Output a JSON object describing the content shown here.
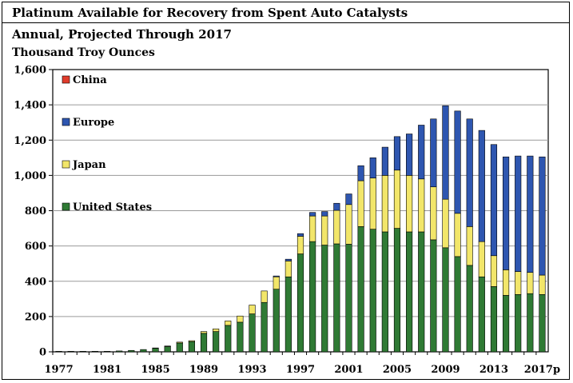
{
  "header": {
    "title": "Platinum Available for Recovery from Spent Auto Catalysts",
    "subtitle": "Annual, Projected Through 2017",
    "unit": "Thousand Troy Ounces"
  },
  "colors": {
    "china": "#e03c2c",
    "europe": "#2e56b0",
    "japan": "#f2e66a",
    "us": "#2f7a34",
    "grid": "#9a9a9a"
  },
  "chart_data": {
    "type": "bar",
    "stacked": true,
    "title": "Platinum Available for Recovery from Spent Auto Catalysts",
    "subtitle": "Annual, Projected Through 2017",
    "ylabel": "Thousand Troy Ounces",
    "ylim": [
      0,
      1600
    ],
    "yticks": [
      "0",
      "200",
      "400",
      "600",
      "800",
      "1,000",
      "1,200",
      "1,400",
      "1,600"
    ],
    "xtick_labels": [
      "1977",
      "1981",
      "1985",
      "1989",
      "1993",
      "1997",
      "2001",
      "2005",
      "2009",
      "2013",
      "2017p"
    ],
    "grid": "horizontal",
    "legend_position": "top-left",
    "categories": [
      "1977",
      "1978",
      "1979",
      "1980",
      "1981",
      "1982",
      "1983",
      "1984",
      "1985",
      "1986",
      "1987",
      "1988",
      "1989",
      "1990",
      "1991",
      "1992",
      "1993",
      "1994",
      "1995",
      "1996",
      "1997",
      "1998",
      "1999",
      "2000",
      "2001",
      "2002",
      "2003",
      "2004",
      "2005",
      "2006",
      "2007",
      "2008",
      "2009",
      "2010",
      "2011",
      "2012",
      "2013",
      "2014",
      "2015",
      "2016",
      "2017p"
    ],
    "series": [
      {
        "name": "United States",
        "values": [
          3,
          3,
          3,
          3,
          3,
          5,
          8,
          13,
          20,
          30,
          50,
          58,
          105,
          115,
          150,
          168,
          215,
          280,
          355,
          425,
          555,
          625,
          605,
          612,
          610,
          710,
          695,
          680,
          700,
          680,
          680,
          635,
          590,
          540,
          490,
          425,
          370,
          320,
          325,
          330,
          325
        ]
      },
      {
        "name": "Japan",
        "values": [
          0,
          0,
          0,
          0,
          0,
          0,
          0,
          0,
          2,
          3,
          5,
          5,
          10,
          15,
          25,
          35,
          50,
          65,
          70,
          90,
          100,
          145,
          165,
          190,
          225,
          260,
          290,
          320,
          330,
          320,
          300,
          300,
          275,
          245,
          220,
          200,
          175,
          145,
          130,
          120,
          110
        ]
      },
      {
        "name": "Europe",
        "values": [
          0,
          0,
          0,
          0,
          0,
          0,
          0,
          0,
          0,
          0,
          0,
          0,
          0,
          0,
          0,
          0,
          0,
          0,
          5,
          10,
          15,
          20,
          25,
          40,
          60,
          85,
          115,
          160,
          190,
          235,
          305,
          385,
          530,
          580,
          610,
          630,
          630,
          640,
          655,
          660,
          670
        ]
      },
      {
        "name": "China",
        "values": [
          0,
          0,
          0,
          0,
          0,
          0,
          0,
          0,
          0,
          0,
          0,
          0,
          0,
          0,
          0,
          0,
          0,
          0,
          0,
          0,
          0,
          0,
          0,
          0,
          0,
          0,
          0,
          0,
          0,
          0,
          0,
          0,
          0,
          0,
          0,
          0,
          0,
          0,
          0,
          0,
          0
        ]
      }
    ]
  }
}
